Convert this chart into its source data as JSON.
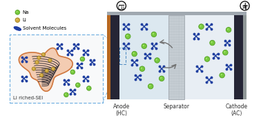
{
  "white": "#ffffff",
  "light_blue_cell_left": "#dce8f0",
  "light_blue_cell_right": "#e8eef4",
  "separator_color": "#c0c8d0",
  "separator_hatch_color": "#a8b0b8",
  "anode_dark": "#252535",
  "cu_color": "#b86820",
  "cathode_dark": "#252535",
  "al_color": "#909898",
  "sei_fill": "#f0a878",
  "sei_border": "#d07840",
  "zoom_box_color": "#4a88c0",
  "na_color": "#78c840",
  "na_edge": "#50a020",
  "li_color": "#d0a840",
  "li_edge": "#a08020",
  "solvent_color": "#2040a0",
  "arrow_color": "#707070",
  "inset_bg": "#ffffff",
  "inset_border": "#6aace0",
  "cell_outline": "#c0c8d0",
  "title_sei": "Li riched-SEI",
  "label_anode": "Anode\n(HC)",
  "label_separator": "Separator",
  "label_cathode": "Cathode\n(AC)",
  "label_cu": "Cu",
  "label_al": "Al",
  "legend_solvent": "Solvent Molecules",
  "legend_li": "Li",
  "legend_na": "Na",
  "top_bar_color": "#a0a8b0"
}
